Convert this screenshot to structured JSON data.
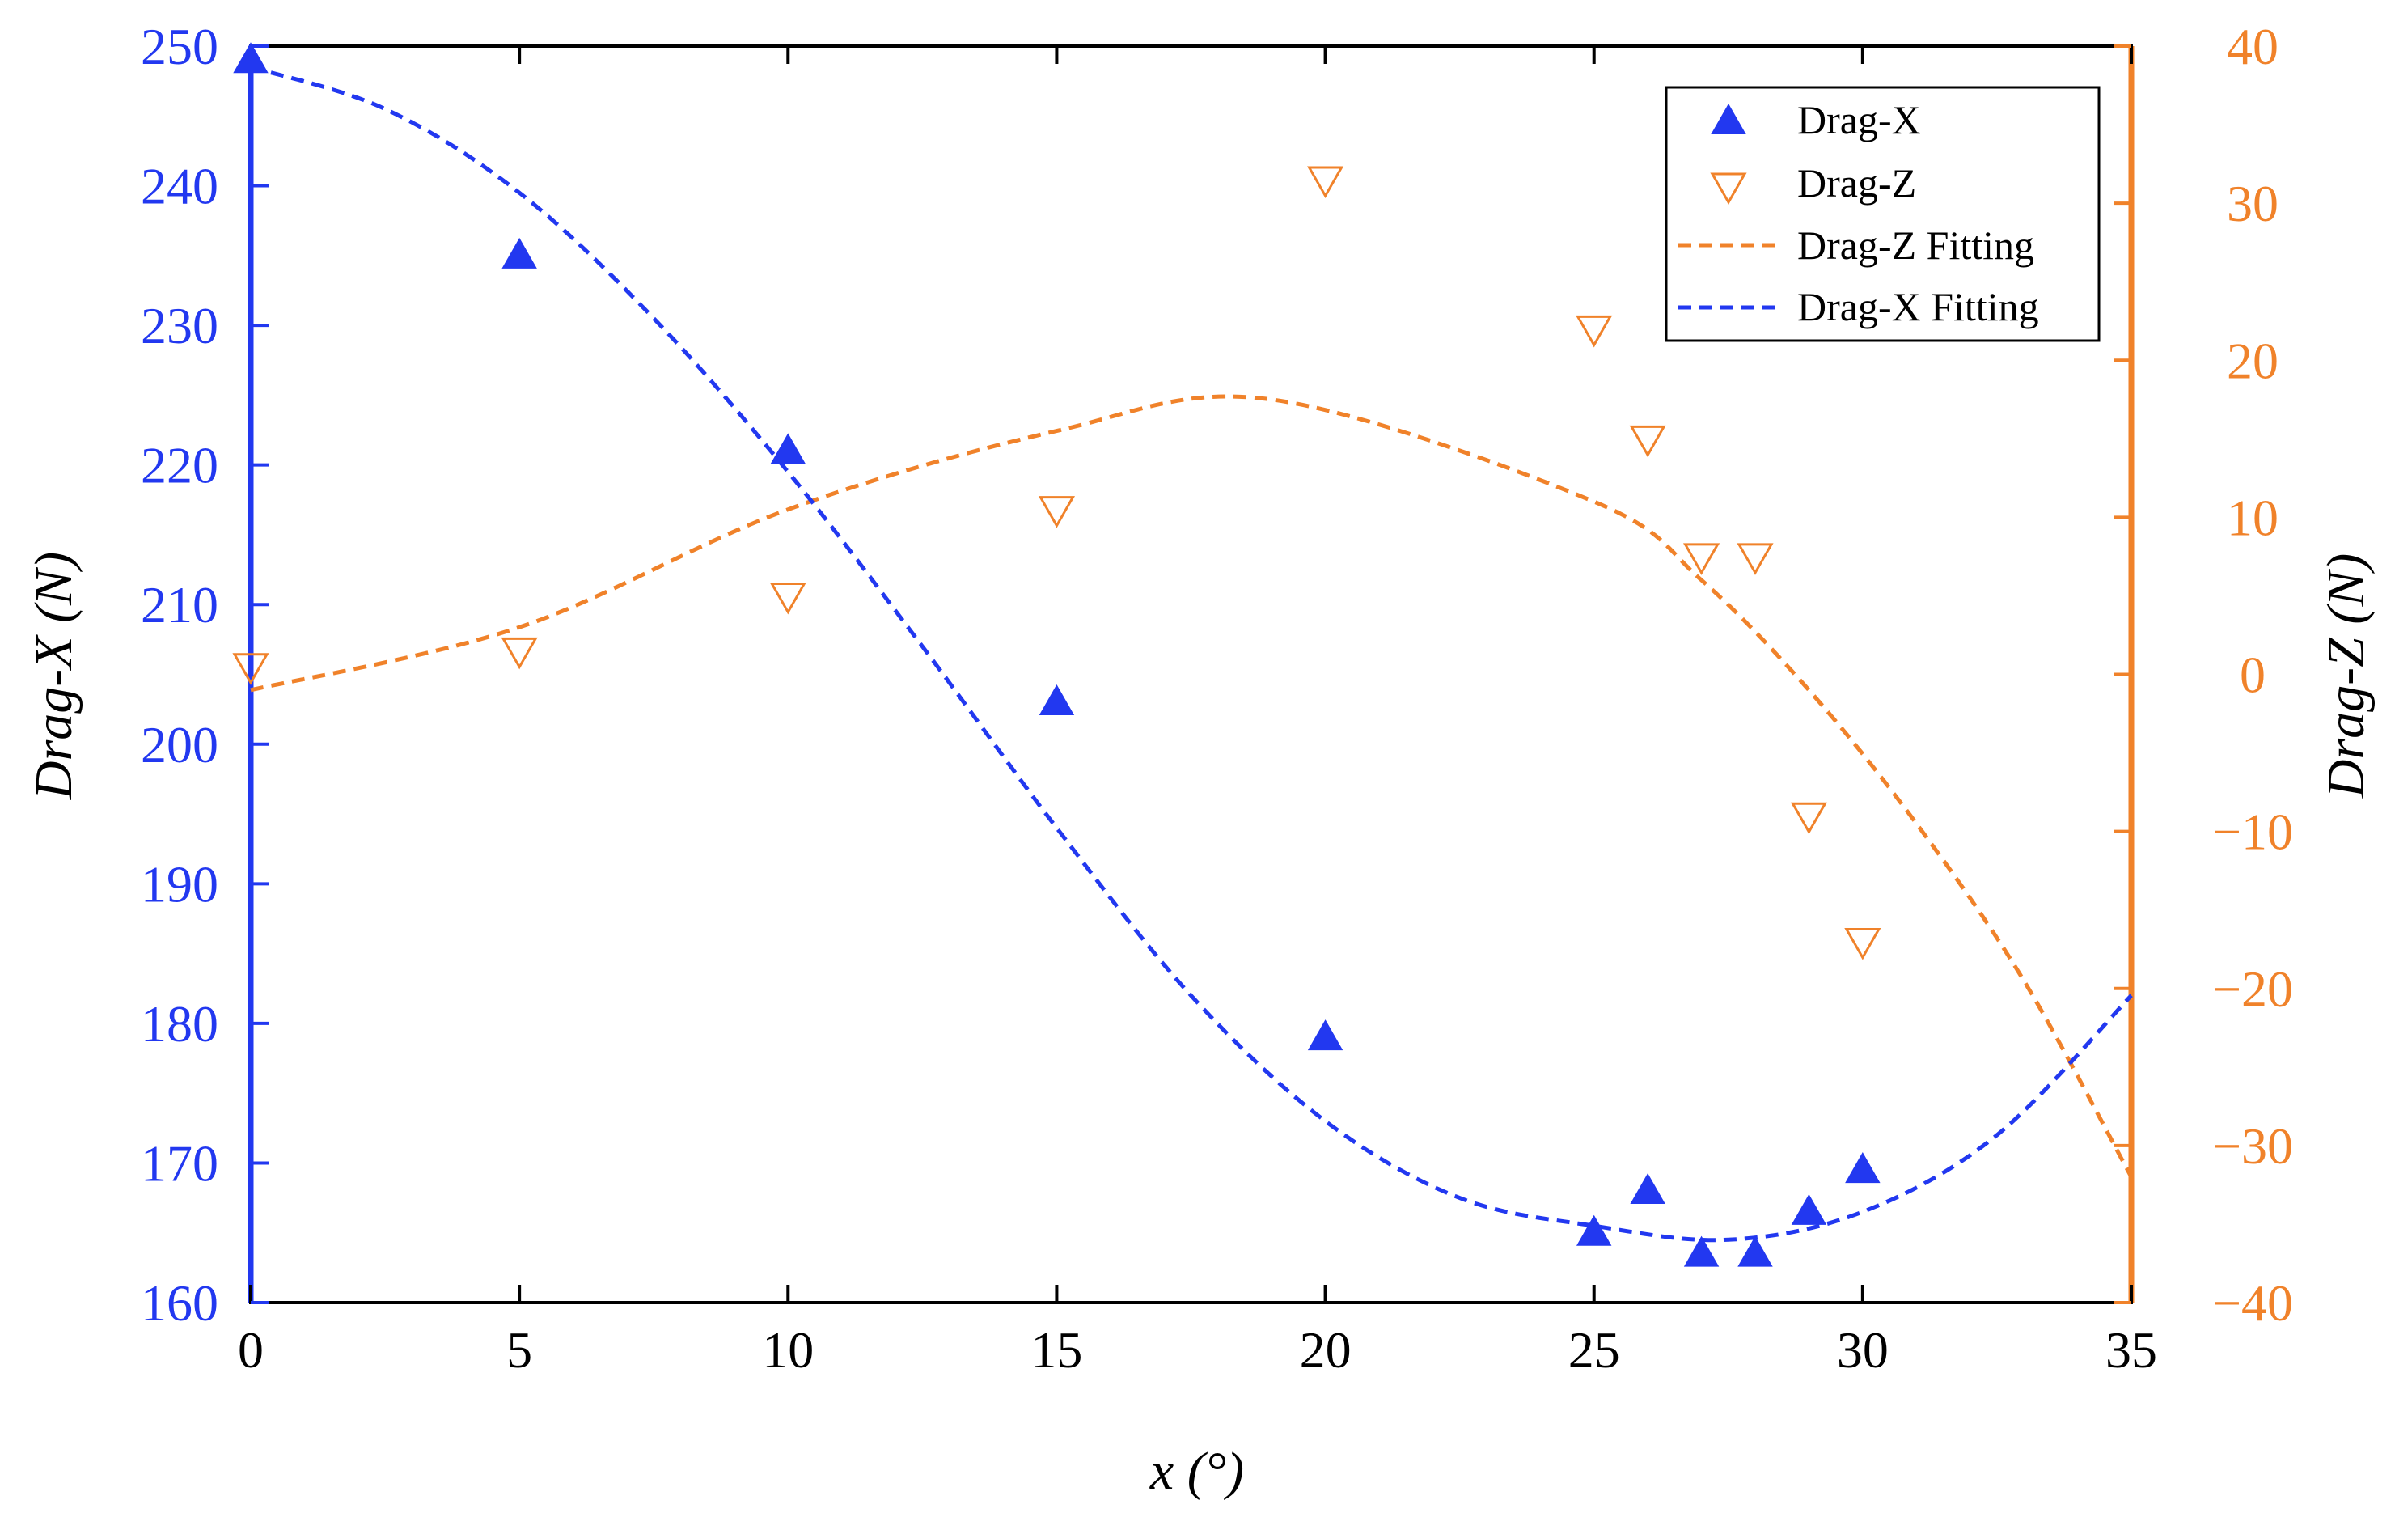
{
  "chart_data": {
    "type": "scatter",
    "title": "",
    "xlabel": "x (°)",
    "ylabel_left": "Drag-X (N)",
    "ylabel_right": "Drag-Z (N)",
    "xlim": [
      0,
      35
    ],
    "ylim_left": [
      160,
      250
    ],
    "ylim_right": [
      -40,
      40
    ],
    "x_ticks": [
      0,
      5,
      10,
      15,
      20,
      25,
      30,
      35
    ],
    "y_left_ticks": [
      160,
      170,
      180,
      190,
      200,
      210,
      220,
      230,
      240,
      250
    ],
    "y_right_ticks": [
      -40,
      -30,
      -20,
      -10,
      0,
      10,
      20,
      30,
      40
    ],
    "grid": false,
    "legend_position": "top-right",
    "colors": {
      "drag_x": "#2238f0",
      "drag_z": "#f0822a",
      "left_axis": "#2238f0",
      "right_axis": "#f0822a"
    },
    "series": [
      {
        "name": "Drag-X",
        "kind": "points",
        "axis": "left",
        "marker": "filled-triangle-up",
        "x": [
          0,
          5,
          10,
          15,
          20,
          25,
          26,
          27,
          28,
          29,
          30
        ],
        "y": [
          249,
          235,
          221,
          203,
          179,
          165,
          168,
          163.5,
          163.5,
          166.5,
          169.5
        ]
      },
      {
        "name": "Drag-Z",
        "kind": "points",
        "axis": "right",
        "marker": "open-triangle-down",
        "x": [
          0,
          5,
          10,
          15,
          20,
          25,
          26,
          27,
          28,
          29,
          30
        ],
        "y": [
          0.5,
          1.5,
          5,
          10.5,
          31.5,
          22,
          15,
          7.5,
          7.5,
          -9,
          -17
        ]
      },
      {
        "name": "Drag-Z Fitting",
        "kind": "line",
        "axis": "right",
        "style": "dashed",
        "x": [
          0,
          5,
          10,
          15,
          19,
          25,
          27,
          29,
          31,
          33,
          35
        ],
        "y": [
          -1,
          3,
          10.5,
          15.5,
          17.5,
          11,
          6,
          -1,
          -9.5,
          -19.5,
          -32
        ]
      },
      {
        "name": "Drag-X Fitting",
        "kind": "line",
        "axis": "left",
        "style": "dashed",
        "x": [
          0,
          2.5,
          5,
          7.5,
          10,
          12.5,
          15,
          17.5,
          20,
          22.5,
          25,
          27.5,
          30,
          32.5,
          35
        ],
        "y": [
          248.5,
          245.5,
          239.5,
          230.5,
          219.5,
          207,
          194,
          182,
          173,
          167.5,
          165.5,
          164.5,
          166.5,
          172,
          182
        ]
      }
    ]
  }
}
